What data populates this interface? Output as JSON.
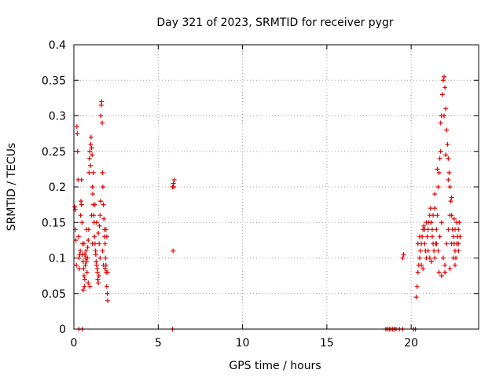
{
  "chart_data": {
    "type": "scatter",
    "title": "Day 321 of 2023, SRMTID for receiver pygr",
    "xlabel": "GPS time / hours",
    "ylabel": "SRMTID / TECUs",
    "xlim": [
      0,
      24
    ],
    "ylim": [
      0,
      0.4
    ],
    "xticks": [
      0,
      5,
      10,
      15,
      20
    ],
    "xtick_labels": [
      "0",
      "5",
      "10",
      "15",
      "20"
    ],
    "yticks": [
      0,
      0.05,
      0.1,
      0.15,
      0.2,
      0.25,
      0.3,
      0.35,
      0.4
    ],
    "ytick_labels": [
      "0",
      "0.05",
      "0.1",
      "0.15",
      "0.2",
      "0.25",
      "0.3",
      "0.35",
      "0.4"
    ],
    "grid": true,
    "marker": "plus",
    "color": "#e00000",
    "series": [
      {
        "name": "SRMTID",
        "points": [
          [
            0.05,
            0.172
          ],
          [
            0.08,
            0.168
          ],
          [
            0.1,
            0.14
          ],
          [
            0.12,
            0.125
          ],
          [
            0.15,
            0.09
          ],
          [
            0.18,
            0.285
          ],
          [
            0.2,
            0.275
          ],
          [
            0.22,
            0.25
          ],
          [
            0.25,
            0.21
          ],
          [
            0.28,
            0.13
          ],
          [
            0.3,
            0.1
          ],
          [
            0.32,
            0.085
          ],
          [
            0.35,
            0.105
          ],
          [
            0.38,
            0.11
          ],
          [
            0.4,
            0.16
          ],
          [
            0.42,
            0.18
          ],
          [
            0.45,
            0.175
          ],
          [
            0.48,
            0.15
          ],
          [
            0.5,
            0.12
          ],
          [
            0.52,
            0.105
          ],
          [
            0.55,
            0.095
          ],
          [
            0.58,
            0.085
          ],
          [
            0.6,
            0.075
          ],
          [
            0.62,
            0.06
          ],
          [
            0.65,
            0.07
          ],
          [
            0.68,
            0.09
          ],
          [
            0.7,
            0.1
          ],
          [
            0.72,
            0.11
          ],
          [
            0.75,
            0.095
          ],
          [
            0.78,
            0.08
          ],
          [
            0.8,
            0.1
          ],
          [
            0.82,
            0.115
          ],
          [
            0.85,
            0.125
          ],
          [
            0.88,
            0.14
          ],
          [
            0.9,
            0.22
          ],
          [
            0.92,
            0.24
          ],
          [
            0.95,
            0.25
          ],
          [
            0.98,
            0.23
          ],
          [
            1.0,
            0.26
          ],
          [
            1.02,
            0.27
          ],
          [
            1.05,
            0.255
          ],
          [
            1.08,
            0.245
          ],
          [
            1.1,
            0.2
          ],
          [
            1.12,
            0.19
          ],
          [
            1.15,
            0.175
          ],
          [
            1.18,
            0.16
          ],
          [
            1.2,
            0.15
          ],
          [
            1.22,
            0.13
          ],
          [
            1.25,
            0.12
          ],
          [
            1.28,
            0.11
          ],
          [
            1.3,
            0.105
          ],
          [
            1.32,
            0.095
          ],
          [
            1.35,
            0.09
          ],
          [
            1.38,
            0.085
          ],
          [
            1.4,
            0.08
          ],
          [
            1.42,
            0.07
          ],
          [
            1.45,
            0.065
          ],
          [
            1.48,
            0.075
          ],
          [
            1.5,
            0.12
          ],
          [
            1.52,
            0.145
          ],
          [
            1.55,
            0.16
          ],
          [
            1.58,
            0.18
          ],
          [
            1.6,
            0.3
          ],
          [
            1.62,
            0.315
          ],
          [
            1.65,
            0.32
          ],
          [
            1.68,
            0.29
          ],
          [
            1.7,
            0.22
          ],
          [
            1.72,
            0.2
          ],
          [
            1.75,
            0.175
          ],
          [
            1.78,
            0.155
          ],
          [
            1.8,
            0.14
          ],
          [
            1.82,
            0.13
          ],
          [
            1.85,
            0.12
          ],
          [
            1.88,
            0.1
          ],
          [
            1.9,
            0.09
          ],
          [
            1.92,
            0.08
          ],
          [
            1.95,
            0.06
          ],
          [
            1.98,
            0.05
          ],
          [
            2.0,
            0.04
          ],
          [
            0.3,
            0.0
          ],
          [
            0.5,
            0.0
          ],
          [
            0.6,
            0.12
          ],
          [
            0.75,
            0.14
          ],
          [
            0.95,
            0.06
          ],
          [
            1.05,
            0.16
          ],
          [
            1.15,
            0.22
          ],
          [
            1.35,
            0.15
          ],
          [
            1.55,
            0.1
          ],
          [
            1.7,
            0.11
          ],
          [
            1.85,
            0.085
          ],
          [
            1.95,
            0.13
          ],
          [
            0.45,
            0.21
          ],
          [
            0.65,
            0.105
          ],
          [
            0.85,
            0.065
          ],
          [
            1.25,
            0.175
          ],
          [
            1.45,
            0.135
          ],
          [
            1.75,
            0.09
          ],
          [
            2.0,
            0.08
          ],
          [
            1.9,
            0.14
          ],
          [
            0.55,
            0.055
          ],
          [
            1.1,
            0.12
          ],
          [
            5.85,
            0.2
          ],
          [
            5.9,
            0.205
          ],
          [
            5.95,
            0.21
          ],
          [
            5.92,
            0.2
          ],
          [
            5.88,
            0.11
          ],
          [
            5.85,
            0.0
          ],
          [
            18.5,
            0.0
          ],
          [
            18.6,
            0.0
          ],
          [
            18.7,
            0.0
          ],
          [
            18.8,
            0.0
          ],
          [
            18.9,
            0.0
          ],
          [
            19.0,
            0.0
          ],
          [
            19.1,
            0.0
          ],
          [
            19.3,
            0.0
          ],
          [
            19.5,
            0.0
          ],
          [
            20.15,
            0.0
          ],
          [
            20.25,
            0.0
          ],
          [
            19.5,
            0.1
          ],
          [
            19.55,
            0.105
          ],
          [
            20.3,
            0.045
          ],
          [
            20.35,
            0.06
          ],
          [
            20.4,
            0.08
          ],
          [
            20.45,
            0.09
          ],
          [
            20.5,
            0.1
          ],
          [
            20.55,
            0.11
          ],
          [
            20.6,
            0.12
          ],
          [
            20.65,
            0.13
          ],
          [
            20.7,
            0.14
          ],
          [
            20.75,
            0.145
          ],
          [
            20.8,
            0.12
          ],
          [
            20.85,
            0.11
          ],
          [
            20.9,
            0.1
          ],
          [
            20.95,
            0.13
          ],
          [
            21.0,
            0.14
          ],
          [
            21.05,
            0.15
          ],
          [
            21.1,
            0.16
          ],
          [
            21.15,
            0.17
          ],
          [
            21.2,
            0.15
          ],
          [
            21.25,
            0.13
          ],
          [
            21.3,
            0.12
          ],
          [
            21.35,
            0.11
          ],
          [
            21.4,
            0.1
          ],
          [
            21.45,
            0.12
          ],
          [
            21.5,
            0.14
          ],
          [
            21.55,
            0.16
          ],
          [
            21.6,
            0.2
          ],
          [
            21.65,
            0.22
          ],
          [
            21.7,
            0.24
          ],
          [
            21.75,
            0.25
          ],
          [
            21.8,
            0.3
          ],
          [
            21.85,
            0.33
          ],
          [
            21.9,
            0.35
          ],
          [
            21.95,
            0.355
          ],
          [
            22.0,
            0.34
          ],
          [
            22.05,
            0.31
          ],
          [
            22.1,
            0.28
          ],
          [
            22.15,
            0.26
          ],
          [
            22.2,
            0.24
          ],
          [
            22.25,
            0.22
          ],
          [
            22.3,
            0.2
          ],
          [
            22.35,
            0.18
          ],
          [
            22.4,
            0.16
          ],
          [
            22.45,
            0.14
          ],
          [
            22.5,
            0.13
          ],
          [
            22.55,
            0.12
          ],
          [
            22.6,
            0.11
          ],
          [
            22.65,
            0.1
          ],
          [
            22.7,
            0.12
          ],
          [
            22.75,
            0.13
          ],
          [
            22.8,
            0.14
          ],
          [
            22.85,
            0.15
          ],
          [
            20.4,
            0.12
          ],
          [
            20.5,
            0.13
          ],
          [
            20.6,
            0.09
          ],
          [
            20.7,
            0.085
          ],
          [
            20.8,
            0.14
          ],
          [
            20.9,
            0.15
          ],
          [
            21.0,
            0.11
          ],
          [
            21.1,
            0.1
          ],
          [
            21.2,
            0.095
          ],
          [
            21.3,
            0.16
          ],
          [
            21.4,
            0.17
          ],
          [
            21.5,
            0.12
          ],
          [
            21.6,
            0.11
          ],
          [
            21.7,
            0.13
          ],
          [
            21.8,
            0.15
          ],
          [
            21.9,
            0.1
          ],
          [
            22.0,
            0.09
          ],
          [
            22.1,
            0.12
          ],
          [
            22.2,
            0.14
          ],
          [
            22.3,
            0.16
          ],
          [
            22.4,
            0.12
          ],
          [
            22.5,
            0.1
          ],
          [
            22.6,
            0.14
          ],
          [
            22.7,
            0.15
          ],
          [
            22.8,
            0.12
          ],
          [
            22.9,
            0.13
          ],
          [
            21.75,
            0.29
          ],
          [
            21.95,
            0.3
          ],
          [
            22.05,
            0.245
          ],
          [
            22.2,
            0.21
          ],
          [
            22.4,
            0.185
          ],
          [
            22.55,
            0.155
          ],
          [
            21.55,
            0.225
          ],
          [
            21.4,
            0.19
          ],
          [
            21.25,
            0.14
          ],
          [
            21.65,
            0.08
          ],
          [
            21.8,
            0.075
          ],
          [
            22.0,
            0.08
          ],
          [
            22.3,
            0.085
          ],
          [
            22.6,
            0.09
          ],
          [
            22.8,
            0.11
          ]
        ]
      }
    ]
  }
}
